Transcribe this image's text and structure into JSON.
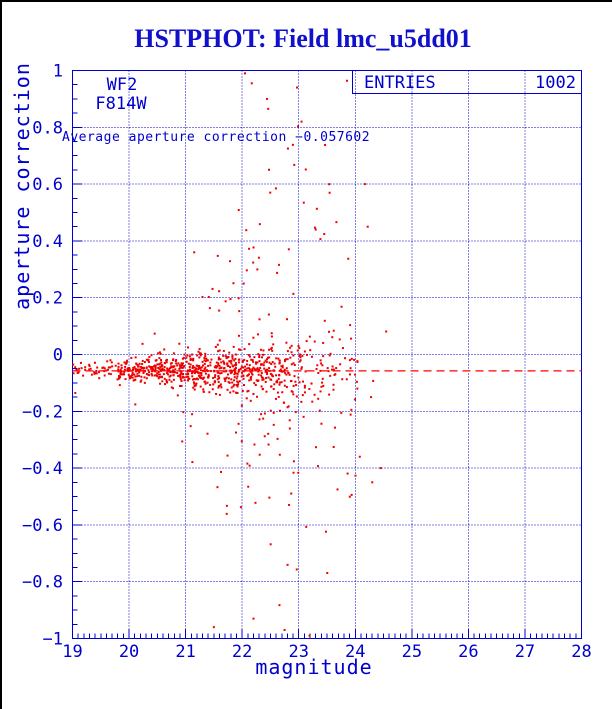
{
  "title": "HSTPHOT: Field lmc_u5dd01",
  "colors": {
    "plot_blue": "#0000CD",
    "title_blue": "#1111CC",
    "point_red": "#EE0000",
    "mean_line_red": "#FF0000",
    "window_border": "#000000",
    "background": "#FFFFFF"
  },
  "annotations": {
    "detector": "WF2",
    "filter": "F814W",
    "average_text": "Average aperture correction −0.057602",
    "entries_label": "ENTRIES",
    "entries_value": "1002"
  },
  "chart_data": {
    "type": "scatter",
    "title": "HSTPHOT: Field lmc_u5dd01",
    "xlabel": "magnitude",
    "ylabel": "aperture correction",
    "xlim": [
      19,
      28
    ],
    "ylim": [
      -1,
      1
    ],
    "x_ticks": [
      {
        "v": 19,
        "label": "19"
      },
      {
        "v": 20,
        "label": "20"
      },
      {
        "v": 21,
        "label": "21"
      },
      {
        "v": 22,
        "label": "22"
      },
      {
        "v": 23,
        "label": "23"
      },
      {
        "v": 24,
        "label": "24"
      },
      {
        "v": 25,
        "label": "25"
      },
      {
        "v": 26,
        "label": "26"
      },
      {
        "v": 27,
        "label": "27"
      },
      {
        "v": 28,
        "label": "28"
      }
    ],
    "y_ticks": [
      {
        "v": 1,
        "label": "1"
      },
      {
        "v": 0.8,
        "label": "0.8"
      },
      {
        "v": 0.6,
        "label": "0.6"
      },
      {
        "v": 0.4,
        "label": "0.4"
      },
      {
        "v": 0.2,
        "label": "0.2"
      },
      {
        "v": 0,
        "label": "0"
      },
      {
        "v": -0.2,
        "label": "−0.2"
      },
      {
        "v": -0.4,
        "label": "−0.4"
      },
      {
        "v": -0.6,
        "label": "−0.6"
      },
      {
        "v": -0.8,
        "label": "−0.8"
      },
      {
        "v": -1,
        "label": "−1"
      }
    ],
    "x_minor_tick_step": 0.1,
    "y_minor_tick_step": 0.05,
    "grid": {
      "style": "dotted",
      "x_values": [
        20,
        21,
        22,
        23,
        24,
        25,
        26,
        27
      ],
      "y_values": [
        -0.8,
        -0.6,
        -0.4,
        -0.2,
        0,
        0.2,
        0.4,
        0.6,
        0.8
      ]
    },
    "n_points": 1002,
    "entries": 1002,
    "mean_aperture_correction": -0.057602,
    "mean_line": {
      "y": -0.057602,
      "style": "dashed"
    },
    "extra_points": [
      [
        22.05,
        0.99
      ],
      [
        22.17,
        0.955
      ],
      [
        22.44,
        0.9
      ],
      [
        22.46,
        0.865
      ],
      [
        22.97,
        0.94
      ],
      [
        23.05,
        0.82
      ],
      [
        23.3,
        0.44
      ],
      [
        24.17,
        0.6
      ],
      [
        24.22,
        0.45
      ],
      [
        24.28,
        -0.15
      ],
      [
        24.08,
        -0.36
      ],
      [
        24.45,
        -0.4
      ],
      [
        24.3,
        -0.45
      ],
      [
        21.5,
        -0.96
      ],
      [
        22.2,
        -0.93
      ],
      [
        22.75,
        -0.97
      ]
    ],
    "points_model": {
      "note": "deterministic approximation of the 1002-point scatter",
      "seed": 7,
      "mag_segments": [
        [
          19.0,
          19.8,
          4
        ],
        [
          19.8,
          20.3,
          10
        ],
        [
          20.3,
          20.9,
          15
        ],
        [
          20.9,
          21.5,
          18
        ],
        [
          21.5,
          22.1,
          18
        ],
        [
          22.1,
          22.7,
          17
        ],
        [
          22.7,
          23.2,
          10
        ],
        [
          23.2,
          23.7,
          5.5
        ],
        [
          23.7,
          24.1,
          1.9
        ],
        [
          24.1,
          24.6,
          0.6
        ]
      ],
      "core": {
        "mean": -0.055,
        "sigma_base": 0.012,
        "sigma_slope": 0.011,
        "mag0": 19.3
      },
      "halo": {
        "mean": -0.06,
        "sigma_base": 0.09,
        "sigma_slope": 0.16,
        "mag0": 20.8
      },
      "core_fraction": {
        "bright": 0.95,
        "slope": 0.13,
        "mag0": 20.5,
        "min": 0.55
      },
      "clip": [
        -0.99,
        0.995
      ]
    }
  }
}
